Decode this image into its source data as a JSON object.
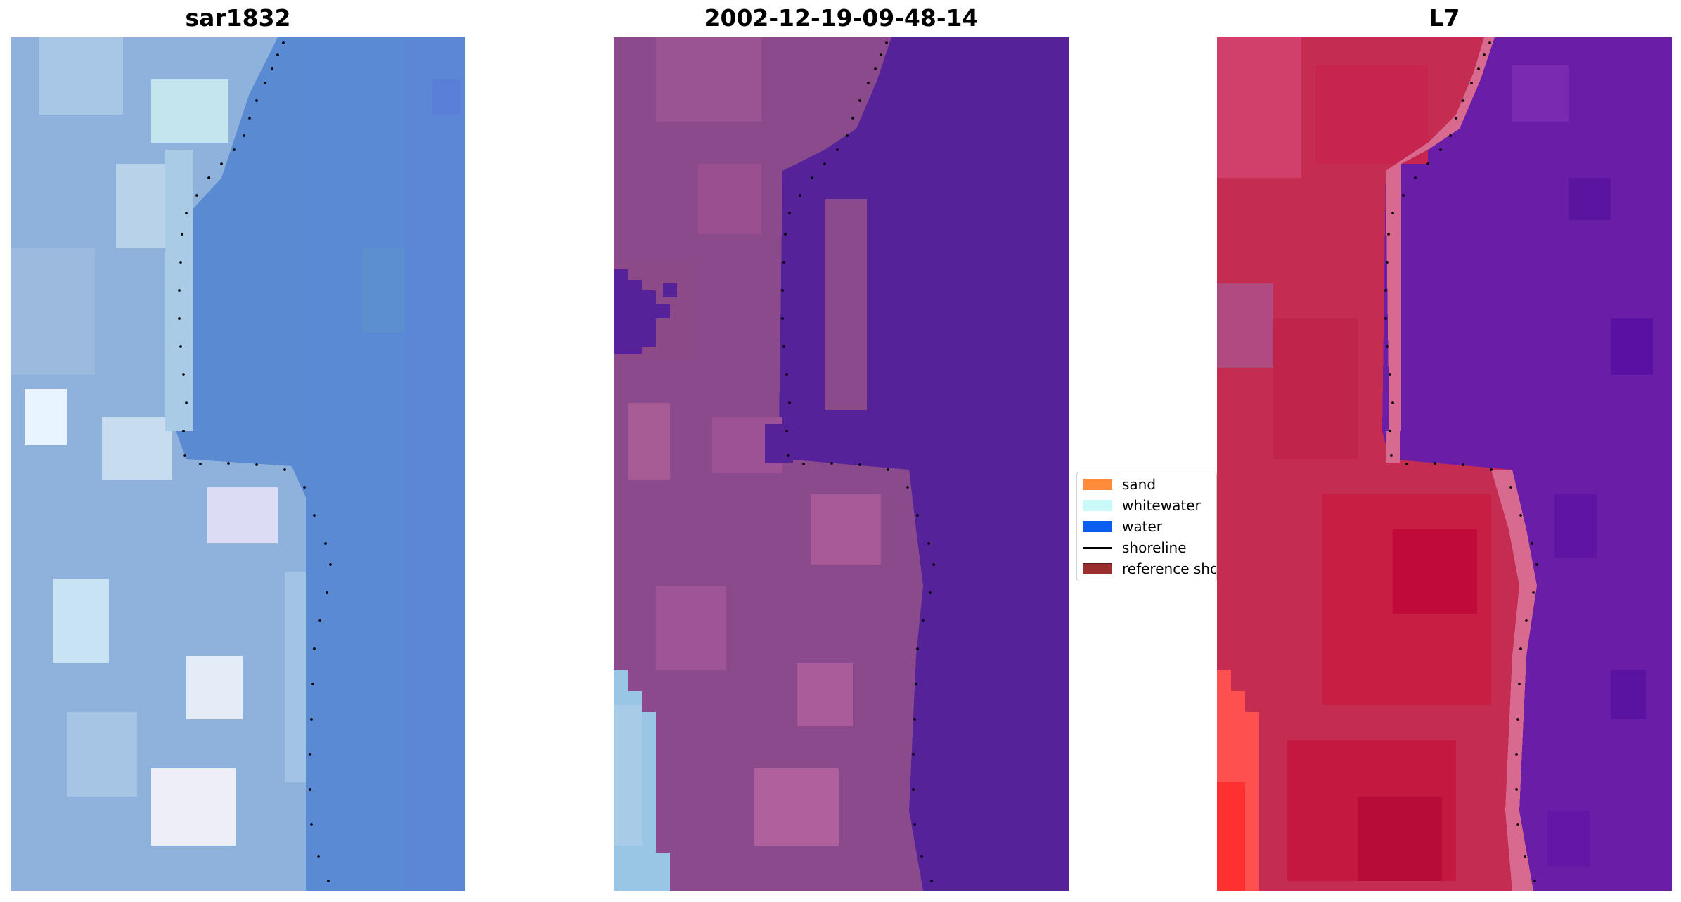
{
  "panels": [
    {
      "title": "sar1832"
    },
    {
      "title": "2002-12-19-09-48-14"
    },
    {
      "title": "L7"
    }
  ],
  "legend": {
    "items": [
      {
        "label": "sand",
        "color": "#ff8c3a",
        "kind": "patch"
      },
      {
        "label": "whitewater",
        "color": "#c8fafa",
        "kind": "patch"
      },
      {
        "label": "water",
        "color": "#0a5ef0",
        "kind": "patch"
      },
      {
        "label": "shoreline",
        "color": "#000000",
        "kind": "line"
      },
      {
        "label": "reference shoreline",
        "color": "#9a2e2e",
        "kind": "patch"
      }
    ]
  },
  "colors": {
    "rgb_water": "#5a8bd2",
    "rgb_land": "#9ab8e0",
    "classified_water": "#55229a",
    "classified_land": "#8a4a8a",
    "classified_whitewater": "#9ac6e6",
    "l7_land": "#c8284a",
    "l7_water": "#6a1ea8",
    "l7_bright": "#ff4040",
    "shoreline_dots": "#000000"
  }
}
